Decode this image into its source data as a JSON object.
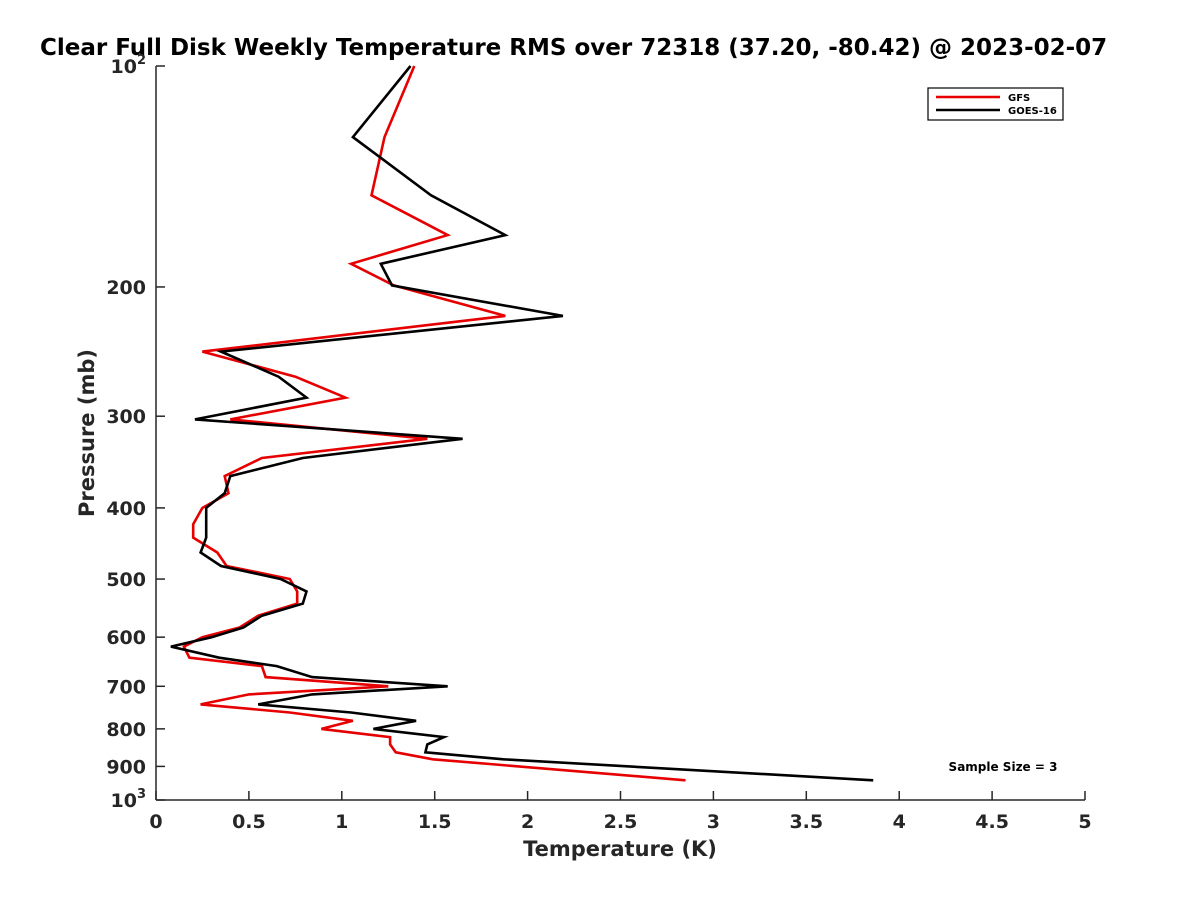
{
  "chart_data": {
    "type": "line",
    "orientation": "vertical-profile",
    "title": "Clear Full Disk Weekly Temperature RMS over 72318 (37.20, -80.42) @ 2023-02-07",
    "xlabel": "Temperature (K)",
    "ylabel": "Pressure (mb)",
    "xlim": [
      0,
      5
    ],
    "ylim": [
      100,
      1000
    ],
    "y_scale": "log",
    "y_reversed": true,
    "grid": false,
    "legend_position": "top-right",
    "x_ticks": [
      "0",
      "0.5",
      "1",
      "1.5",
      "2",
      "2.5",
      "3",
      "3.5",
      "4",
      "4.5",
      "5"
    ],
    "y_ticks": [
      {
        "value": 100,
        "base": "10",
        "exp": "2"
      },
      {
        "value": 200,
        "base": "200",
        "exp": ""
      },
      {
        "value": 300,
        "base": "300",
        "exp": ""
      },
      {
        "value": 400,
        "base": "400",
        "exp": ""
      },
      {
        "value": 500,
        "base": "500",
        "exp": ""
      },
      {
        "value": 600,
        "base": "600",
        "exp": ""
      },
      {
        "value": 700,
        "base": "700",
        "exp": ""
      },
      {
        "value": 800,
        "base": "800",
        "exp": ""
      },
      {
        "value": 900,
        "base": "900",
        "exp": ""
      },
      {
        "value": 1000,
        "base": "10",
        "exp": "3"
      }
    ],
    "annotation": "Sample Size = 3",
    "series": [
      {
        "name": "GFS",
        "color": "#e60000",
        "points": [
          [
            1.39,
            100
          ],
          [
            1.23,
            125
          ],
          [
            1.16,
            150
          ],
          [
            1.57,
            170
          ],
          [
            1.05,
            186
          ],
          [
            1.28,
            199
          ],
          [
            1.88,
            219
          ],
          [
            0.25,
            245
          ],
          [
            0.75,
            265
          ],
          [
            1.02,
            283
          ],
          [
            0.4,
            303
          ],
          [
            1.46,
            322
          ],
          [
            0.57,
            342
          ],
          [
            0.37,
            362
          ],
          [
            0.39,
            382
          ],
          [
            0.25,
            400
          ],
          [
            0.2,
            421
          ],
          [
            0.2,
            439
          ],
          [
            0.33,
            460
          ],
          [
            0.38,
            480
          ],
          [
            0.72,
            500
          ],
          [
            0.76,
            520
          ],
          [
            0.76,
            540
          ],
          [
            0.55,
            561
          ],
          [
            0.45,
            582
          ],
          [
            0.25,
            600
          ],
          [
            0.15,
            618
          ],
          [
            0.18,
            640
          ],
          [
            0.57,
            657
          ],
          [
            0.59,
            680
          ],
          [
            1.25,
            700
          ],
          [
            0.5,
            718
          ],
          [
            0.24,
            741
          ],
          [
            0.72,
            760
          ],
          [
            1.06,
            780
          ],
          [
            0.89,
            800
          ],
          [
            1.26,
            821
          ],
          [
            1.26,
            840
          ],
          [
            1.29,
            861
          ],
          [
            1.49,
            880
          ],
          [
            2.85,
            940
          ]
        ]
      },
      {
        "name": "GOES-16",
        "color": "#000000",
        "points": [
          [
            1.37,
            100
          ],
          [
            1.06,
            125
          ],
          [
            1.48,
            150
          ],
          [
            1.88,
            170
          ],
          [
            1.21,
            186
          ],
          [
            1.27,
            199
          ],
          [
            2.19,
            219
          ],
          [
            0.35,
            245
          ],
          [
            0.66,
            265
          ],
          [
            0.81,
            283
          ],
          [
            0.21,
            303
          ],
          [
            1.65,
            322
          ],
          [
            0.79,
            342
          ],
          [
            0.4,
            362
          ],
          [
            0.37,
            382
          ],
          [
            0.27,
            400
          ],
          [
            0.27,
            421
          ],
          [
            0.27,
            439
          ],
          [
            0.24,
            460
          ],
          [
            0.35,
            480
          ],
          [
            0.67,
            500
          ],
          [
            0.81,
            520
          ],
          [
            0.79,
            540
          ],
          [
            0.57,
            561
          ],
          [
            0.47,
            582
          ],
          [
            0.3,
            600
          ],
          [
            0.08,
            618
          ],
          [
            0.34,
            640
          ],
          [
            0.65,
            657
          ],
          [
            0.84,
            680
          ],
          [
            1.57,
            700
          ],
          [
            0.84,
            718
          ],
          [
            0.55,
            741
          ],
          [
            1.05,
            760
          ],
          [
            1.4,
            780
          ],
          [
            1.17,
            800
          ],
          [
            1.55,
            821
          ],
          [
            1.46,
            840
          ],
          [
            1.45,
            861
          ],
          [
            1.87,
            880
          ],
          [
            3.86,
            940
          ]
        ]
      }
    ]
  }
}
